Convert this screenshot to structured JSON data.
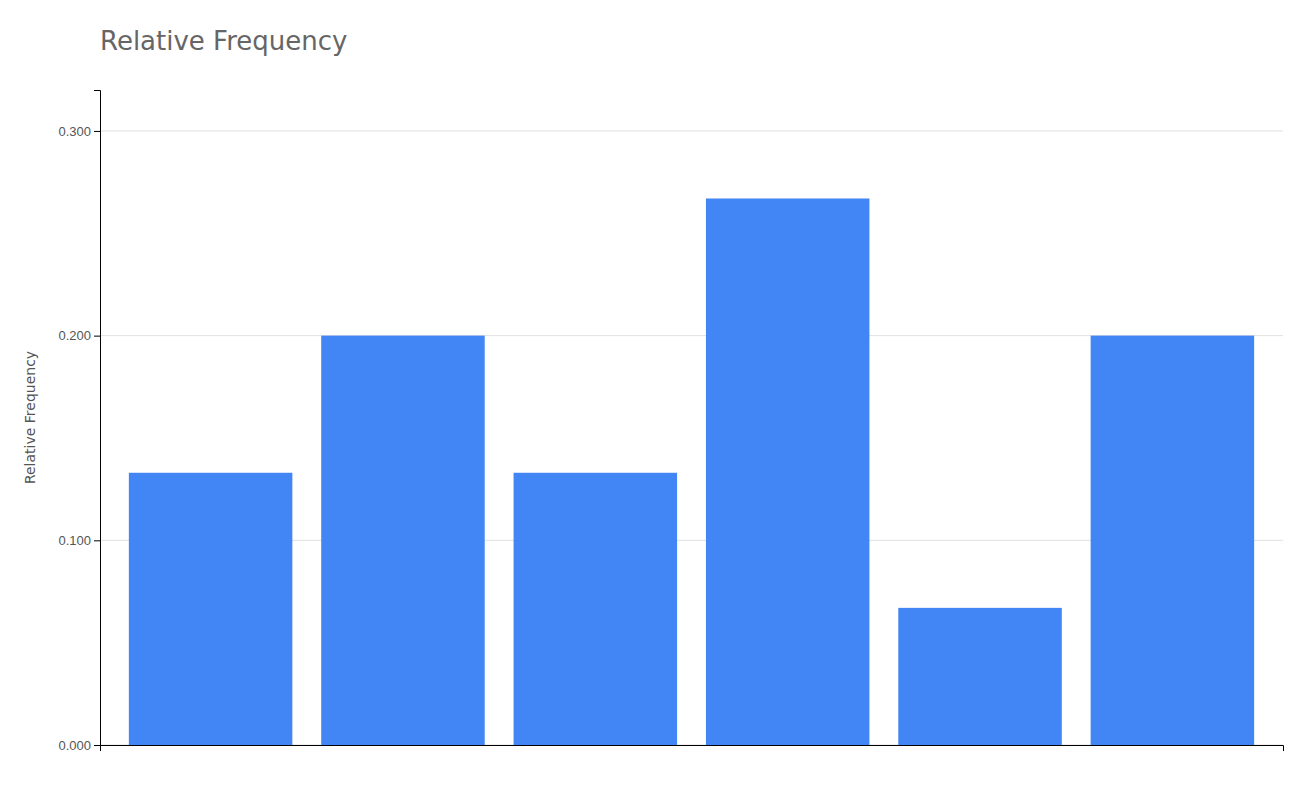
{
  "chart_data": {
    "type": "bar",
    "title": "Relative Frequency",
    "ylabel": "Relative Frequency",
    "categories": [
      null,
      null,
      null,
      null,
      null,
      null
    ],
    "values": [
      0.133,
      0.2,
      0.133,
      0.267,
      0.067,
      0.2
    ],
    "color": "#4285f4",
    "ylim": [
      0,
      0.32
    ],
    "yticks": [
      {
        "value": 0.0,
        "label": "0.000"
      },
      {
        "value": 0.1,
        "label": "0.100"
      },
      {
        "value": 0.2,
        "label": "0.200"
      },
      {
        "value": 0.3,
        "label": "0.300"
      }
    ],
    "grid": true,
    "tick_labels": "y"
  }
}
